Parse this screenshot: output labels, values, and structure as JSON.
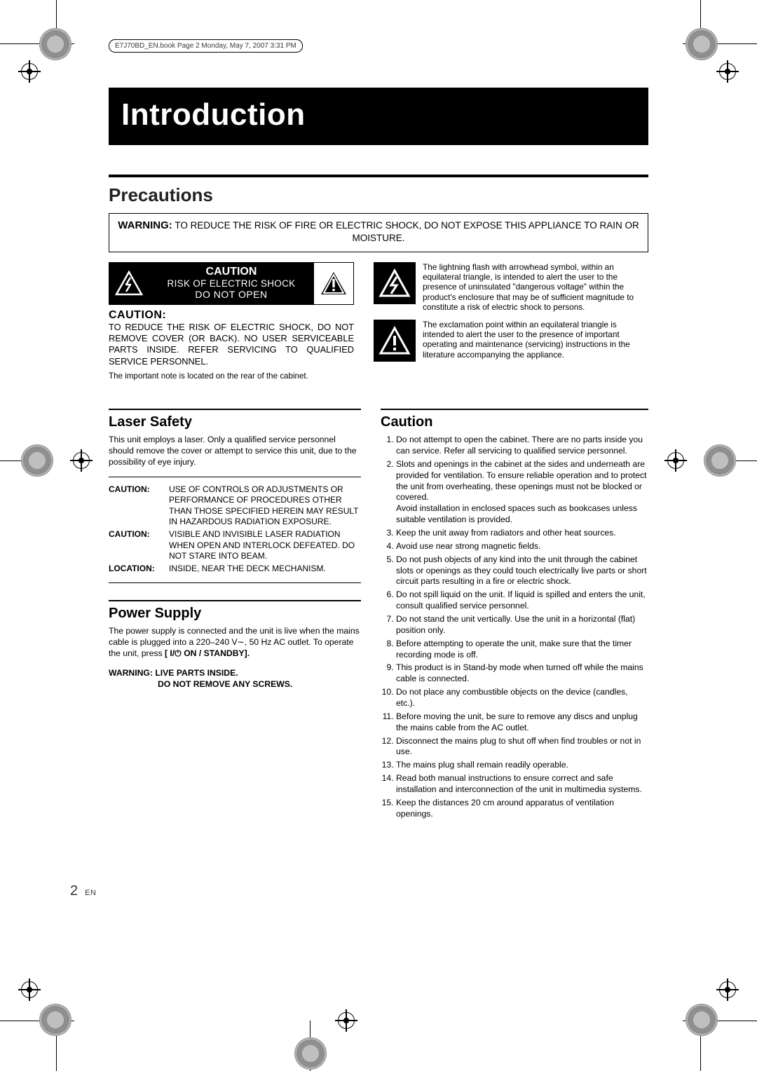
{
  "print_header": "E7J70BD_EN.book  Page 2  Monday, May 7, 2007  3:31 PM",
  "title": "Introduction",
  "section_precautions": "Precautions",
  "warning_label": "WARNING:",
  "warning_text": "TO REDUCE THE RISK OF FIRE OR ELECTRIC SHOCK, DO NOT EXPOSE THIS APPLIANCE TO RAIN OR MOISTURE.",
  "caution_panel": {
    "c1": "CAUTION",
    "c2": "RISK OF ELECTRIC SHOCK",
    "c3": "DO NOT OPEN"
  },
  "sub_caution_title": "CAUTION:",
  "sub_caution_body": "TO REDUCE THE RISK OF ELECTRIC SHOCK, DO NOT REMOVE COVER (OR BACK). NO USER SERVICEABLE PARTS INSIDE. REFER SERVICING TO QUALIFIED SERVICE PERSONNEL.",
  "small_note": "The important note is located on the rear of the cabinet.",
  "symbol_bolt": "The lightning flash with arrowhead symbol, within an equilateral triangle, is intended to alert the user to the presence of uninsulated \"dangerous voltage\" within the product's enclosure that may be of sufficient magnitude to constitute a risk of electric shock to persons.",
  "symbol_excl": "The exclamation point within an equilateral triangle is intended to alert the user to the presence of important operating and maintenance (servicing) instructions in the literature accompanying the appliance.",
  "laser": {
    "title": "Laser Safety",
    "intro": "This unit employs a laser. Only a qualified service personnel should remove the cover or attempt to service this unit, due to the possibility of eye injury.",
    "rows": [
      {
        "k": "CAUTION:",
        "v": "USE OF CONTROLS OR ADJUSTMENTS OR PERFORMANCE OF PROCEDURES OTHER THAN THOSE SPECIFIED HEREIN MAY RESULT IN HAZARDOUS RADIATION EXPOSURE."
      },
      {
        "k": "CAUTION:",
        "v": "VISIBLE AND INVISIBLE LASER RADIATION WHEN OPEN AND INTERLOCK DEFEATED. DO NOT STARE INTO BEAM."
      },
      {
        "k": "LOCATION:",
        "v": "INSIDE, NEAR THE DECK MECHANISM."
      }
    ]
  },
  "power": {
    "title": "Power Supply",
    "body1": "The power supply is connected and the unit is live when the mains cable is plugged into a 220–240 V∼, 50 Hz AC outlet. To operate the unit, press",
    "body1b": "[ I/⏻ ON / STANDBY].",
    "warn1": "WARNING: LIVE PARTS INSIDE.",
    "warn2": "DO NOT REMOVE ANY SCREWS."
  },
  "caution": {
    "title": "Caution",
    "items": [
      "Do not attempt to open the cabinet. There are no parts inside you can service. Refer all servicing to qualified service personnel.",
      "Slots and openings in the cabinet at the sides and underneath are provided for ventilation. To ensure reliable operation and to protect the unit from overheating, these openings must not be blocked or covered.\nAvoid installation in enclosed spaces such as bookcases unless suitable ventilation is provided.",
      "Keep the unit away from radiators and other heat sources.",
      "Avoid use near strong magnetic fields.",
      "Do not push objects of any kind into the unit through the cabinet slots or openings as they could touch electrically live parts or short circuit parts resulting in a fire or electric shock.",
      "Do not spill liquid on the unit. If liquid is spilled and enters the unit, consult qualified service personnel.",
      "Do not stand the unit vertically. Use the unit in a horizontal (flat) position only.",
      "Before attempting to operate the unit, make sure that the timer recording mode is off.",
      "This product is in Stand-by mode when turned off while the mains cable is connected.",
      "Do not place any combustible objects on the device (candles, etc.).",
      "Before moving the unit, be sure to remove any discs and unplug the mains cable from the AC outlet.",
      "Disconnect the mains plug to shut off when find troubles or not in use.",
      "The mains plug shall remain readily operable.",
      "Read both manual instructions to ensure correct and safe installation and interconnection of the unit in multimedia systems.",
      "Keep the distances 20 cm around apparatus of ventilation openings."
    ]
  },
  "pagenum": "2",
  "lang": "EN",
  "colors": {
    "black": "#000000",
    "white": "#ffffff",
    "gray": "#bfbfbf"
  }
}
